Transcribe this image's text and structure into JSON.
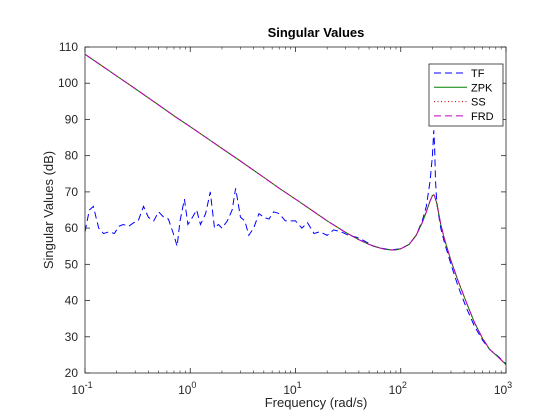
{
  "chart_data": {
    "type": "line",
    "title": "Singular Values",
    "xlabel": "Frequency (rad/s)",
    "ylabel": "Singular Values (dB)",
    "x_scale": "log",
    "xlim": [
      0.1,
      1000
    ],
    "ylim": [
      20,
      110
    ],
    "x_ticks": [
      0.1,
      1,
      10,
      100,
      1000
    ],
    "x_tick_labels": [
      {
        "base": "10",
        "exp": "-1"
      },
      {
        "base": "10",
        "exp": "0"
      },
      {
        "base": "10",
        "exp": "1"
      },
      {
        "base": "10",
        "exp": "2"
      },
      {
        "base": "10",
        "exp": "3"
      }
    ],
    "y_ticks": [
      20,
      30,
      40,
      50,
      60,
      70,
      80,
      90,
      100,
      110
    ],
    "grid": false,
    "legend_position": "top-right",
    "series": [
      {
        "name": "TF",
        "color": "#0000ff",
        "dash": "7,4",
        "x": [
          0.1,
          0.11,
          0.12,
          0.135,
          0.15,
          0.17,
          0.19,
          0.21,
          0.23,
          0.26,
          0.29,
          0.32,
          0.36,
          0.4,
          0.45,
          0.5,
          0.56,
          0.62,
          0.7,
          0.75,
          0.8,
          0.88,
          0.95,
          1.05,
          1.15,
          1.25,
          1.4,
          1.55,
          1.7,
          1.85,
          2.0,
          2.25,
          2.5,
          2.7,
          3.0,
          3.3,
          3.6,
          4.0,
          4.5,
          5.0,
          5.6,
          6.2,
          7.0,
          8.0,
          9.0,
          10,
          11.5,
          13,
          15,
          17,
          20,
          23,
          27,
          32,
          38,
          45,
          55,
          65,
          80,
          100,
          120,
          140,
          160,
          175,
          190,
          200,
          206,
          210,
          214,
          218,
          222,
          228,
          240,
          260,
          300,
          350,
          420,
          500,
          600,
          700,
          850,
          1000
        ],
        "y": [
          59,
          65,
          66,
          60,
          58.5,
          59,
          58.5,
          60.5,
          61,
          60.5,
          61.5,
          62,
          66,
          63,
          62,
          64.5,
          63,
          62.5,
          58,
          55,
          62,
          68,
          61,
          63,
          65,
          61,
          64,
          70,
          60,
          61,
          60,
          62,
          65,
          71,
          63,
          62,
          58,
          60,
          64,
          63,
          62.5,
          64.5,
          64,
          62,
          62,
          62,
          60,
          61.5,
          58.5,
          59,
          58,
          59.5,
          59,
          58,
          57.5,
          56.5,
          55,
          54.5,
          54,
          54.3,
          55.5,
          58,
          62,
          66,
          73,
          80,
          87,
          82,
          73,
          69,
          66.5,
          64,
          60,
          56,
          50,
          44,
          38,
          33,
          29,
          26.5,
          24.5,
          22.5
        ]
      },
      {
        "name": "ZPK",
        "color": "#008000",
        "dash": "",
        "x": [
          0.1,
          0.15,
          0.2,
          0.3,
          0.5,
          0.7,
          1,
          1.5,
          2,
          3,
          5,
          7,
          10,
          15,
          20,
          30,
          40,
          50,
          60,
          70,
          80,
          90,
          100,
          120,
          140,
          160,
          175,
          190,
          200,
          206,
          210,
          214,
          218,
          222,
          228,
          240,
          260,
          300,
          350,
          420,
          500,
          600,
          700,
          850,
          1000
        ],
        "y": [
          108,
          104.5,
          102,
          98.5,
          94,
          91,
          88,
          84.5,
          82,
          78.5,
          74,
          71,
          68,
          64.5,
          62,
          58.8,
          56.8,
          55.5,
          54.7,
          54.2,
          54.0,
          54.0,
          54.3,
          55.5,
          58,
          61.5,
          64.5,
          67.5,
          69,
          69.2,
          68.8,
          68,
          67.2,
          66.2,
          64.5,
          61,
          57,
          51,
          45.5,
          39.5,
          34,
          29.5,
          26.5,
          24.3,
          22.3
        ]
      },
      {
        "name": "SS",
        "color": "#c00000",
        "dash": "1,2.5",
        "x": [
          0.1,
          0.15,
          0.2,
          0.3,
          0.5,
          0.7,
          1,
          1.5,
          2,
          3,
          5,
          7,
          10,
          15,
          20,
          30,
          40,
          50,
          60,
          70,
          80,
          90,
          100,
          120,
          140,
          160,
          175,
          190,
          200,
          206,
          210,
          214,
          218,
          222,
          228,
          240,
          260,
          300,
          350,
          420,
          500,
          600,
          700,
          850,
          1000
        ],
        "y": [
          108,
          104.5,
          102,
          98.5,
          94,
          91,
          88,
          84.5,
          82,
          78.5,
          74,
          71,
          68,
          64.5,
          62,
          58.8,
          56.8,
          55.5,
          54.7,
          54.2,
          54.0,
          54.0,
          54.3,
          55.5,
          58,
          61.5,
          64.5,
          67.5,
          69,
          69.2,
          68.8,
          68,
          67.2,
          66.2,
          64.5,
          61,
          57,
          51,
          45.5,
          39.5,
          34,
          29.5,
          26.5,
          24.3,
          22.3
        ]
      },
      {
        "name": "FRD",
        "color": "#bf00bf",
        "dash": "7,4",
        "x": [
          0.1,
          0.15,
          0.2,
          0.3,
          0.5,
          0.7,
          1,
          1.5,
          2,
          3,
          5,
          7,
          10,
          15,
          20,
          30,
          40,
          50,
          60,
          70,
          80,
          90,
          100,
          120,
          140,
          160,
          175,
          190,
          200,
          206,
          210,
          214,
          218,
          222,
          228,
          240,
          260,
          300,
          350,
          420,
          500,
          600,
          700,
          850,
          1000
        ],
        "y": [
          108,
          104.5,
          102,
          98.5,
          94,
          91,
          88,
          84.5,
          82,
          78.5,
          74,
          71,
          68,
          64.5,
          62,
          58.8,
          56.8,
          55.5,
          54.7,
          54.2,
          54.0,
          54.0,
          54.3,
          55.5,
          58,
          61.5,
          64.5,
          67.5,
          69,
          69.2,
          68.8,
          68,
          67.2,
          66.2,
          64.5,
          61,
          57,
          51,
          45.5,
          39.5,
          34,
          29.5,
          26.5,
          24.3,
          22.3
        ]
      }
    ]
  }
}
